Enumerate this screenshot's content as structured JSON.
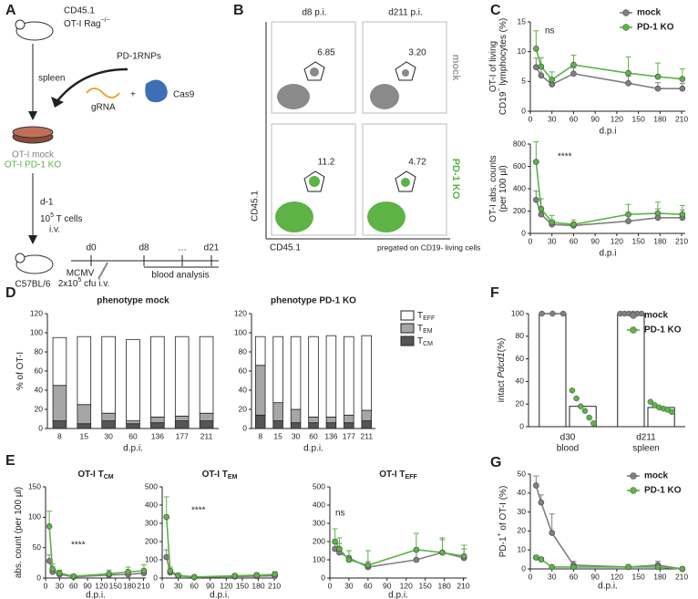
{
  "figure_labels": {
    "a": "A",
    "b": "B",
    "c": "C",
    "d": "D",
    "e": "E",
    "f": "F",
    "g": "G"
  },
  "schematic": {
    "donor_marker": "CD45.1",
    "donor_strain": [
      "OT-I Rag",
      {
        "sup": "−/−"
      }
    ],
    "organ": "spleen",
    "rnp": "PD-1RNPs",
    "grna": "gRNA",
    "plus": "+",
    "cas9": "Cas9",
    "group_mock": "OT-I mock",
    "group_ko": "OT-I PD-1 KO",
    "transfer_day": "d-1",
    "cell_dose": [
      "10",
      {
        "sup": "5"
      },
      " T cells"
    ],
    "route": "i.v.",
    "recipient": "C57BL/6",
    "timeline": [
      "d0",
      "d8",
      "…",
      "d21"
    ],
    "infection": "MCMV",
    "infection_dose": [
      "2x10",
      {
        "sup": "5"
      },
      " cfu i.v."
    ],
    "readout": "blood analysis"
  },
  "flow": {
    "columns": [
      "d8 p.i.",
      "d211 p.i."
    ],
    "rows": [
      "mock",
      "PD-1 KO"
    ],
    "gates": [
      [
        "6.85",
        "3.20"
      ],
      [
        "11.2",
        "4.72"
      ]
    ],
    "y_axis": "CD45.1",
    "x_axis": "CD45.1",
    "note": "pregated on CD19- living cells"
  },
  "chart_data": [
    {
      "type": "line",
      "ylabel": [
        [
          "OT-I of living"
        ],
        [
          "CD19",
          {
            "sup": "−"
          },
          " lymphocytes (%)"
        ]
      ],
      "xlabel": "d.p.i",
      "x": [
        8,
        15,
        30,
        60,
        136,
        177,
        211
      ],
      "xlim": [
        0,
        215
      ],
      "xticks": [
        0,
        30,
        60,
        90,
        120,
        150,
        180,
        210
      ],
      "ylim": [
        0,
        15
      ],
      "yticks": [
        0,
        5,
        10,
        15
      ],
      "annotation": "ns",
      "legend": "upper right",
      "series": [
        {
          "name": "mock",
          "color": "#808080",
          "values": [
            7.4,
            6.0,
            4.5,
            6.3,
            4.7,
            3.8,
            3.8
          ],
          "errors": [
            1.5,
            1.2,
            0.8,
            1.0,
            1.2,
            1.0,
            0.9
          ]
        },
        {
          "name": "PD-1 KO",
          "color": "#5db346",
          "values": [
            10.5,
            7.5,
            5.3,
            7.8,
            6.4,
            5.8,
            5.4
          ],
          "errors": [
            3.0,
            1.5,
            1.3,
            1.6,
            2.7,
            2.3,
            1.7
          ]
        }
      ]
    },
    {
      "type": "line",
      "ylabel": [
        [
          "OT-I abs. counts"
        ],
        [
          "(per 100 µl)"
        ]
      ],
      "xlabel": "d.p.i",
      "x": [
        8,
        15,
        30,
        60,
        136,
        177,
        211
      ],
      "xlim": [
        0,
        215
      ],
      "xticks": [
        0,
        30,
        60,
        90,
        120,
        150,
        180,
        210
      ],
      "ylim": [
        0,
        800
      ],
      "yticks": [
        0,
        200,
        400,
        600,
        800
      ],
      "annotation": "****",
      "series": [
        {
          "color": "#808080",
          "values": [
            300,
            170,
            80,
            70,
            110,
            140,
            140
          ],
          "errors": [
            80,
            50,
            30,
            30,
            60,
            80,
            70
          ]
        },
        {
          "color": "#5db346",
          "values": [
            640,
            220,
            100,
            80,
            170,
            180,
            170
          ],
          "errors": [
            180,
            90,
            60,
            40,
            90,
            100,
            80
          ]
        }
      ]
    },
    {
      "type": "stacked_bar",
      "title": "phenotype mock",
      "ylabel": [
        [
          "% of OT-I"
        ]
      ],
      "xlabel": "d.p.i.",
      "categories": [
        "8",
        "15",
        "30",
        "60",
        "136",
        "177",
        "211"
      ],
      "ylim": [
        0,
        120
      ],
      "yticks": [
        0,
        20,
        40,
        60,
        80,
        100,
        120
      ],
      "series": [
        {
          "color": "#555555",
          "values": [
            8,
            5,
            8,
            5,
            6,
            8,
            8
          ]
        },
        {
          "color": "#a6a6a6",
          "values": [
            37,
            20,
            8,
            3,
            6,
            5,
            8
          ]
        },
        {
          "color": "#ffffff",
          "values": [
            50,
            71,
            80,
            85,
            84,
            83,
            80
          ]
        }
      ]
    },
    {
      "type": "stacked_bar",
      "title": "phenotype PD-1 KO",
      "xlabel": "d.p.i.",
      "categories": [
        "8",
        "15",
        "30",
        "60",
        "136",
        "177",
        "211"
      ],
      "ylim": [
        0,
        120
      ],
      "yticks": [
        0,
        20,
        40,
        60,
        80,
        100,
        120
      ],
      "legend": "right",
      "series": [
        {
          "name": [
            "T",
            {
              "sub": "CM"
            }
          ],
          "color": "#555555",
          "values": [
            14,
            8,
            6,
            6,
            6,
            6,
            8
          ]
        },
        {
          "name": [
            "T",
            {
              "sub": "EM"
            }
          ],
          "color": "#a6a6a6",
          "values": [
            52,
            19,
            14,
            6,
            6,
            8,
            11
          ]
        },
        {
          "name": [
            "T",
            {
              "sub": "EFF"
            }
          ],
          "color": "#ffffff",
          "values": [
            30,
            69,
            76,
            84,
            85,
            82,
            78
          ]
        }
      ]
    },
    {
      "type": "line",
      "title": [
        "OT-I T",
        {
          "sub": "CM"
        }
      ],
      "ylabel": [
        [
          "abs. count (per 100 µl)"
        ]
      ],
      "xlabel": "d.p.i.",
      "x": [
        8,
        15,
        30,
        60,
        136,
        177,
        211
      ],
      "xlim": [
        0,
        215
      ],
      "xticks": [
        0,
        30,
        60,
        90,
        120,
        150,
        180,
        210
      ],
      "ylim": [
        0,
        150
      ],
      "yticks": [
        0,
        50,
        100,
        150
      ],
      "annotation": "****",
      "series": [
        {
          "color": "#808080",
          "values": [
            28,
            10,
            6,
            2,
            5,
            6,
            8
          ],
          "errors": [
            10,
            4,
            3,
            1,
            3,
            4,
            5
          ]
        },
        {
          "color": "#5db346",
          "values": [
            85,
            15,
            8,
            3,
            7,
            10,
            12
          ],
          "errors": [
            25,
            8,
            5,
            2,
            6,
            8,
            10
          ]
        }
      ]
    },
    {
      "type": "line",
      "title": [
        "OT-I T",
        {
          "sub": "EM"
        }
      ],
      "xlabel": "d.p.i.",
      "x": [
        8,
        15,
        30,
        60,
        136,
        177,
        211
      ],
      "xlim": [
        0,
        215
      ],
      "xticks": [
        0,
        30,
        60,
        90,
        120,
        150,
        180,
        210
      ],
      "ylim": [
        0,
        500
      ],
      "yticks": [
        0,
        100,
        200,
        300,
        400,
        500
      ],
      "annotation": "****",
      "series": [
        {
          "color": "#808080",
          "values": [
            115,
            30,
            12,
            5,
            8,
            10,
            12
          ],
          "errors": [
            40,
            15,
            8,
            3,
            6,
            8,
            10
          ]
        },
        {
          "color": "#5db346",
          "values": [
            335,
            40,
            15,
            6,
            12,
            16,
            20
          ],
          "errors": [
            110,
            20,
            10,
            4,
            10,
            12,
            15
          ]
        }
      ]
    },
    {
      "type": "line",
      "title": [
        "OT-I T",
        {
          "sub": "EFF"
        }
      ],
      "xlabel": "d.p.i.",
      "x": [
        8,
        15,
        30,
        60,
        136,
        177,
        211
      ],
      "xlim": [
        0,
        215
      ],
      "xticks": [
        0,
        30,
        60,
        90,
        120,
        150,
        180,
        210
      ],
      "ylim": [
        0,
        500
      ],
      "yticks": [
        0,
        100,
        200,
        300,
        400,
        500
      ],
      "annotation": "ns",
      "series": [
        {
          "color": "#808080",
          "values": [
            160,
            140,
            110,
            60,
            100,
            140,
            110
          ],
          "errors": [
            50,
            50,
            40,
            30,
            50,
            80,
            50
          ]
        },
        {
          "color": "#5db346",
          "values": [
            200,
            160,
            100,
            70,
            155,
            140,
            120
          ],
          "errors": [
            70,
            60,
            50,
            80,
            90,
            70,
            60
          ]
        }
      ]
    },
    {
      "type": "bar_dots",
      "ylabel": [
        [
          "intact ",
          {
            "i": "Pdcd1"
          },
          "(%)"
        ]
      ],
      "categories": [
        "d30",
        "d211"
      ],
      "category_sublabels": [
        "blood",
        "spleen"
      ],
      "ylim": [
        0,
        100
      ],
      "yticks": [
        0,
        20,
        40,
        60,
        80,
        100
      ],
      "legend": "upper right",
      "series": [
        {
          "name": "mock",
          "color": "#808080",
          "values": [
            100,
            100
          ],
          "points": [
            [
              100,
              100,
              100
            ],
            [
              100,
              100,
              100,
              100,
              100,
              100
            ]
          ]
        },
        {
          "name": "PD-1 KO",
          "color": "#5db346",
          "values": [
            18,
            17
          ],
          "points": [
            [
              32,
              25,
              18,
              14,
              8,
              3
            ],
            [
              22,
              19,
              17,
              16,
              15,
              13
            ]
          ]
        }
      ]
    },
    {
      "type": "line",
      "ylabel": [
        [
          "PD-1",
          {
            "sup": "+"
          },
          " of OT-I (%)"
        ]
      ],
      "xlabel": "d.p.i.",
      "x": [
        8,
        15,
        30,
        60,
        136,
        177,
        211
      ],
      "xlim": [
        0,
        215
      ],
      "xticks": [
        0,
        30,
        60,
        90,
        120,
        150,
        180,
        210
      ],
      "ylim": [
        0,
        50
      ],
      "yticks": [
        0,
        10,
        20,
        30,
        40,
        50
      ],
      "legend": "upper right",
      "series": [
        {
          "name": "mock",
          "color": "#808080",
          "values": [
            44,
            35,
            19,
            2,
            1,
            2,
            0
          ],
          "errors": [
            5,
            4,
            10,
            2,
            1,
            2,
            0
          ]
        },
        {
          "name": "PD-1 KO",
          "color": "#5db346",
          "values": [
            6,
            5,
            1,
            1,
            1,
            1,
            0
          ],
          "errors": [
            1,
            1,
            0.5,
            0.5,
            0.5,
            0.5,
            0
          ]
        }
      ]
    }
  ]
}
